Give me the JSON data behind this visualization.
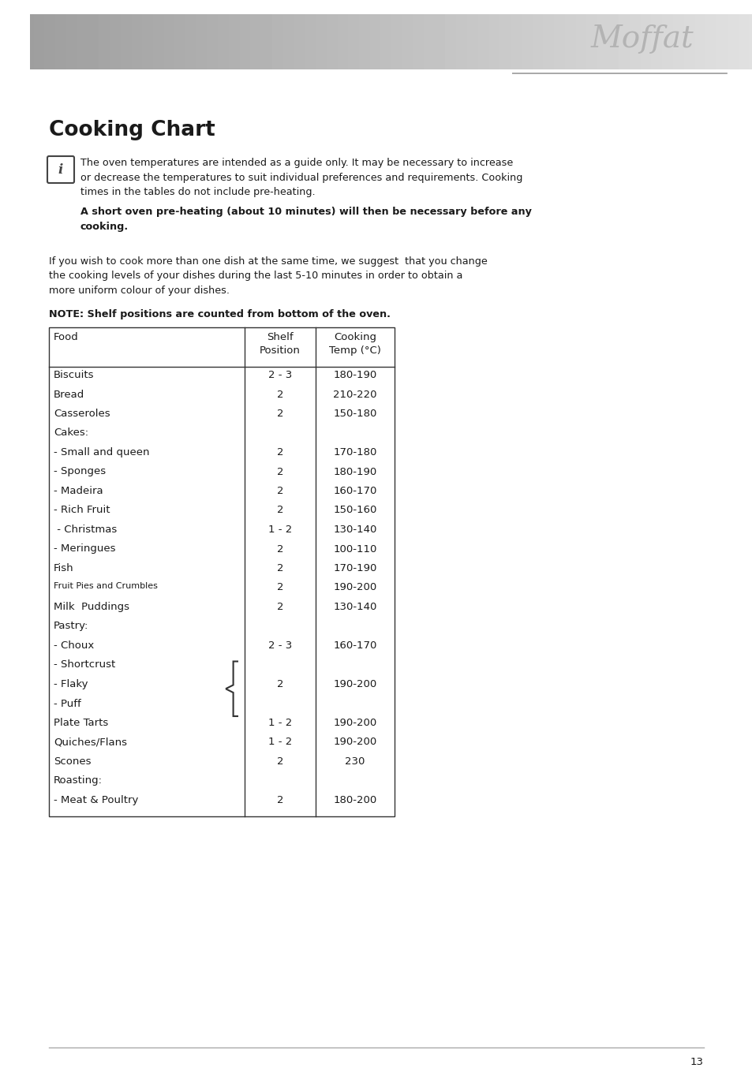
{
  "title": "Cooking Chart",
  "info_text_1": "The oven temperatures are intended as a guide only. It may be necessary to increase\nor decrease the temperatures to suit individual preferences and requirements. Cooking\ntimes in the tables do not include pre-heating.",
  "info_bold_1": "A short oven pre-heating (about 10 minutes) will then be necessary before any\ncooking.",
  "info_text_2": "If you wish to cook more than one dish at the same time, we suggest  that you change\nthe cooking levels of your dishes during the last 5-10 minutes in order to obtain a\nmore uniform colour of your dishes.",
  "info_bold_2": "NOTE: Shelf positions are counted from bottom of the oven.",
  "table_rows": [
    [
      "Biscuits",
      "2 - 3",
      "180-190",
      false,
      false
    ],
    [
      "Bread",
      "2",
      "210-220",
      false,
      false
    ],
    [
      "Casseroles",
      "2",
      "150-180",
      false,
      false
    ],
    [
      "Cakes:",
      "",
      "",
      true,
      false
    ],
    [
      "- Small and queen",
      "2",
      "170-180",
      false,
      false
    ],
    [
      "- Sponges",
      "2",
      "180-190",
      false,
      false
    ],
    [
      "- Madeira",
      "2",
      "160-170",
      false,
      false
    ],
    [
      "- Rich Fruit",
      "2",
      "150-160",
      false,
      false
    ],
    [
      " - Christmas",
      "1 - 2",
      "130-140",
      false,
      false
    ],
    [
      "- Meringues",
      "2",
      "100-110",
      false,
      false
    ],
    [
      "Fish",
      "2",
      "170-190",
      false,
      false
    ],
    [
      "Fruit Pies and Crumbles",
      "2",
      "190-200",
      false,
      true
    ],
    [
      "Milk  Puddings",
      "2",
      "130-140",
      false,
      false
    ],
    [
      "Pastry:",
      "",
      "",
      true,
      false
    ],
    [
      "- Choux",
      "2 - 3",
      "160-170",
      false,
      false
    ],
    [
      "- Shortcrust",
      "",
      "",
      false,
      false
    ],
    [
      "- Flaky",
      "2",
      "190-200",
      false,
      false
    ],
    [
      "- Puff",
      "",
      "",
      false,
      false
    ],
    [
      "Plate Tarts",
      "1 - 2",
      "190-200",
      false,
      false
    ],
    [
      "Quiches/Flans",
      "1 - 2",
      "190-200",
      false,
      false
    ],
    [
      "Scones",
      "2",
      "230",
      false,
      false
    ],
    [
      "Roasting:",
      "",
      "",
      true,
      false
    ],
    [
      "- Meat & Poultry",
      "2",
      "180-200",
      false,
      false
    ]
  ],
  "page_number": "13",
  "bg_color": "#ffffff",
  "text_color": "#1a1a1a",
  "border_color": "#333333",
  "bar_gray_dark": 0.62,
  "bar_gray_light": 0.88,
  "moffat_color": "#aaaaaa",
  "bottom_line_color": "#aaaaaa"
}
